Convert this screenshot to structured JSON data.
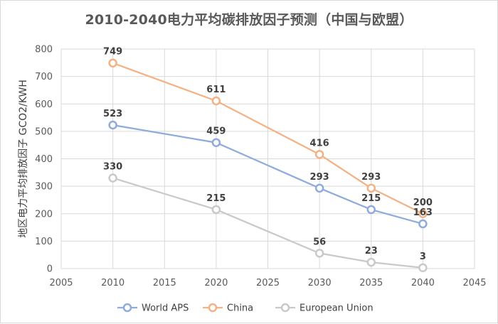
{
  "chart_data": {
    "type": "line",
    "title": "2010-2040电力平均碳排放因子预测（中国与欧盟）",
    "xlabel": "",
    "ylabel": "地区电力平均排放因子 GCO2/KWH",
    "xlim": [
      2005,
      2045
    ],
    "ylim": [
      0,
      800
    ],
    "xticks": [
      2005,
      2010,
      2015,
      2020,
      2025,
      2030,
      2035,
      2040,
      2045
    ],
    "yticks": [
      0,
      100,
      200,
      300,
      400,
      500,
      600,
      700,
      800
    ],
    "x": [
      2010,
      2020,
      2030,
      2035,
      2040
    ],
    "grid": true,
    "legend": "bottom",
    "series": [
      {
        "name": "World APS",
        "color": "#8faadc",
        "values": [
          523,
          459,
          293,
          215,
          163
        ]
      },
      {
        "name": "China",
        "color": "#f4b183",
        "values": [
          749,
          611,
          416,
          293,
          200
        ]
      },
      {
        "name": "European Union",
        "color": "#c9c9c9",
        "values": [
          330,
          215,
          56,
          23,
          3
        ]
      }
    ]
  }
}
